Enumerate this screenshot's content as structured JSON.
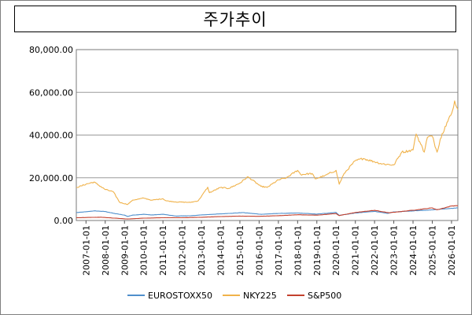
{
  "chart_data": {
    "type": "line",
    "title": "주가추이",
    "xlabel": "",
    "ylabel": "",
    "ylim": [
      0,
      80000
    ],
    "y_ticks": [
      "0.00",
      "20,000.00",
      "40,000.00",
      "60,000.00",
      "80,000.00"
    ],
    "x_ticks": [
      "2007-01-01",
      "2008-01-01",
      "2009-01-01",
      "2010-01-01",
      "2011-01-01",
      "2012-01-01",
      "2013-01-01",
      "2014-01-01",
      "2015-01-01",
      "2016-01-01",
      "2017-01-01",
      "2018-01-01",
      "2019-01-01",
      "2020-01-01",
      "2021-01-01",
      "2022-01-01",
      "2023-01-01",
      "2024-01-01",
      "2025-01-01",
      "2026-01-01"
    ],
    "xlim": [
      "2006-07-01",
      "2026-05-01"
    ],
    "grid": "horizontal",
    "legend_position": "bottom",
    "series": [
      {
        "name": "EUROSTOXX50",
        "color": "#4f8fcc",
        "x": [
          "2006-07-01",
          "2007-01-01",
          "2007-06-01",
          "2008-01-01",
          "2008-06-01",
          "2009-01-01",
          "2009-03-01",
          "2009-06-01",
          "2010-01-01",
          "2010-06-01",
          "2011-01-01",
          "2011-09-01",
          "2012-06-01",
          "2013-01-01",
          "2014-01-01",
          "2015-03-01",
          "2016-02-01",
          "2017-01-01",
          "2018-01-01",
          "2019-01-01",
          "2020-01-01",
          "2020-03-01",
          "2021-01-01",
          "2022-01-01",
          "2022-09-01",
          "2023-01-01",
          "2024-01-01",
          "2025-01-01",
          "2026-01-01",
          "2026-05-01"
        ],
        "y": [
          3700,
          4100,
          4500,
          4200,
          3400,
          2500,
          1900,
          2500,
          2900,
          2600,
          2900,
          2100,
          2200,
          2600,
          3100,
          3700,
          2900,
          3300,
          3500,
          3000,
          3800,
          2400,
          3500,
          4300,
          3300,
          4000,
          4500,
          5000,
          5700,
          5900
        ]
      },
      {
        "name": "NKY225",
        "color": "#f0b24a",
        "x": [
          "2006-07-01",
          "2006-10-01",
          "2007-01-01",
          "2007-06-01",
          "2007-09-01",
          "2008-01-01",
          "2008-06-01",
          "2008-10-01",
          "2009-03-01",
          "2009-06-01",
          "2010-01-01",
          "2010-06-01",
          "2011-01-01",
          "2011-03-01",
          "2011-09-01",
          "2012-01-01",
          "2012-06-01",
          "2012-11-01",
          "2013-05-01",
          "2013-06-01",
          "2014-01-01",
          "2014-06-01",
          "2015-01-01",
          "2015-06-01",
          "2016-02-01",
          "2016-06-01",
          "2017-01-01",
          "2017-06-01",
          "2018-01-01",
          "2018-03-01",
          "2018-10-01",
          "2018-12-01",
          "2019-06-01",
          "2020-01-01",
          "2020-03-01",
          "2020-06-01",
          "2021-01-01",
          "2021-06-01",
          "2022-01-01",
          "2022-06-01",
          "2023-01-01",
          "2023-06-01",
          "2024-01-01",
          "2024-03-01",
          "2024-08-01",
          "2024-10-01",
          "2025-01-01",
          "2025-04-01",
          "2025-06-01",
          "2025-09-01",
          "2026-01-01",
          "2026-03-01",
          "2026-05-01"
        ],
        "y": [
          15500,
          16200,
          17000,
          18000,
          16500,
          14500,
          13500,
          8500,
          7500,
          9500,
          10500,
          9500,
          10200,
          9200,
          8700,
          8600,
          8500,
          9200,
          15600,
          13000,
          15500,
          15000,
          17500,
          20500,
          16000,
          15500,
          19000,
          20000,
          23500,
          21500,
          22000,
          19500,
          21000,
          23500,
          17000,
          22000,
          28000,
          29000,
          27500,
          26500,
          26000,
          32000,
          33000,
          40500,
          32000,
          39000,
          39500,
          32000,
          38000,
          44000,
          50000,
          56000,
          52000
        ]
      },
      {
        "name": "S&P500",
        "color": "#c3412e",
        "x": [
          "2006-07-01",
          "2007-10-01",
          "2009-03-01",
          "2010-01-01",
          "2011-01-01",
          "2012-01-01",
          "2013-01-01",
          "2014-01-01",
          "2015-01-01",
          "2016-01-01",
          "2017-01-01",
          "2018-01-01",
          "2019-01-01",
          "2020-01-01",
          "2020-03-01",
          "2021-01-01",
          "2022-01-01",
          "2022-10-01",
          "2023-01-01",
          "2024-01-01",
          "2025-01-01",
          "2025-04-01",
          "2026-01-01",
          "2026-05-01"
        ],
        "y": [
          1300,
          1550,
          700,
          1100,
          1300,
          1300,
          1500,
          1850,
          2050,
          1950,
          2250,
          2700,
          2500,
          3250,
          2300,
          3750,
          4750,
          3600,
          3850,
          4800,
          5900,
          5000,
          6800,
          7000
        ]
      }
    ]
  }
}
